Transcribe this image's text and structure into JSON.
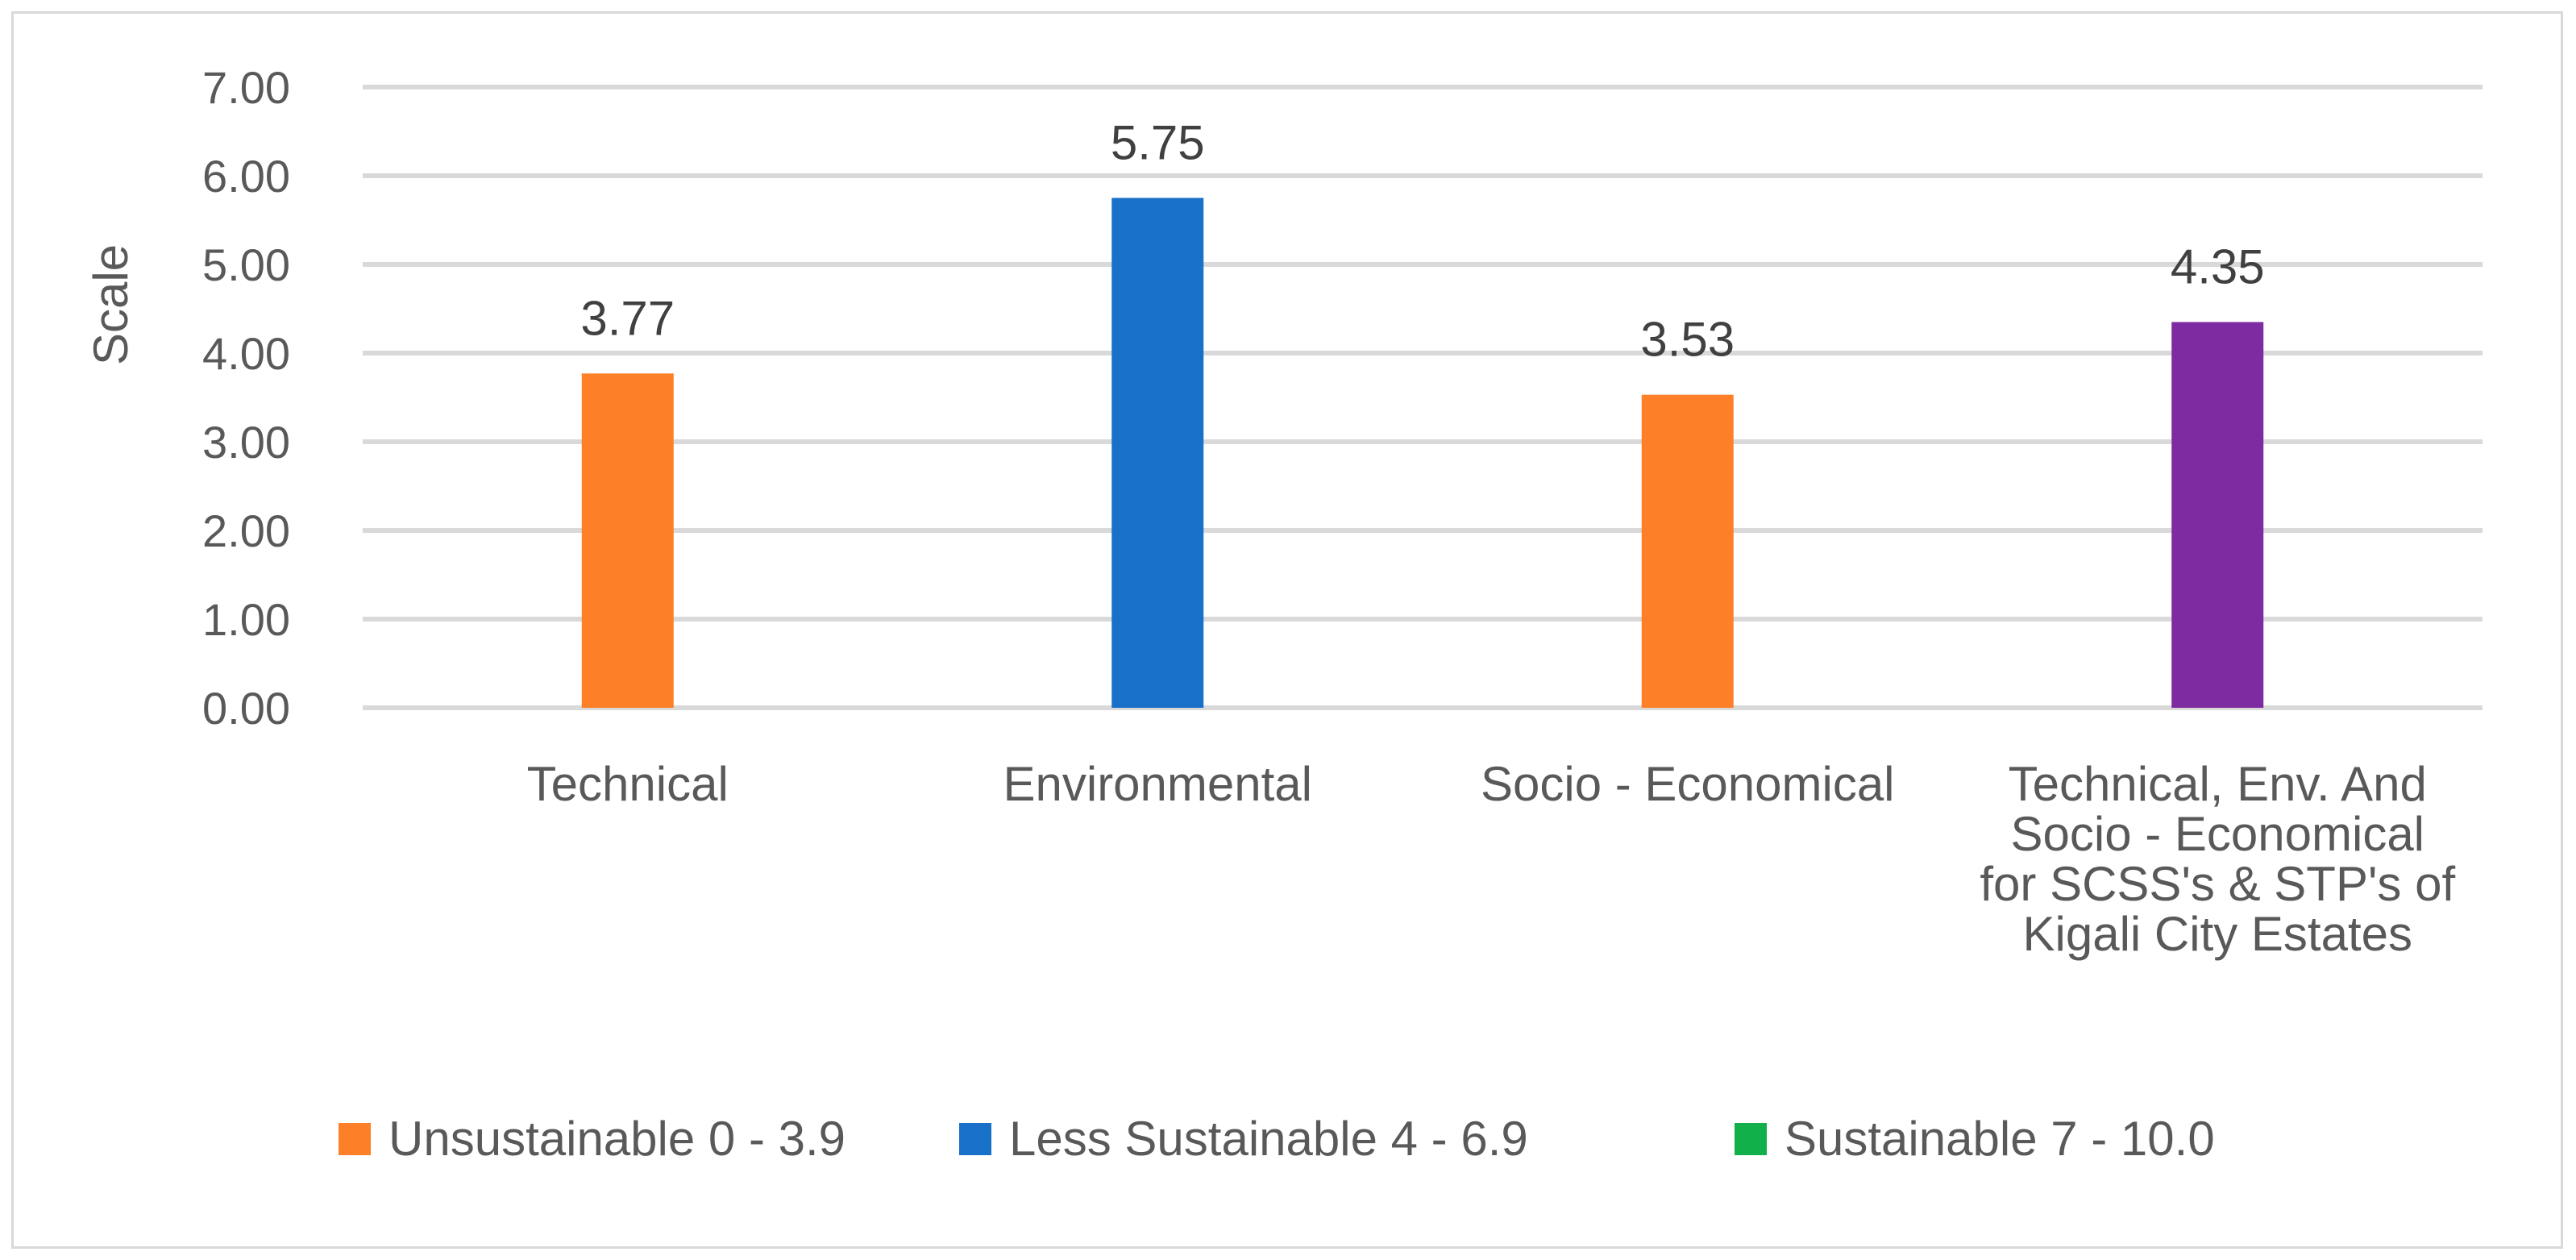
{
  "chart_data": {
    "type": "bar",
    "title": "",
    "xlabel": "",
    "ylabel": "Scale",
    "ylim": [
      0,
      7
    ],
    "y_ticks": [
      "0.00",
      "1.00",
      "2.00",
      "3.00",
      "4.00",
      "5.00",
      "6.00",
      "7.00"
    ],
    "grid": true,
    "legend_position": "bottom",
    "categories": [
      [
        "Technical"
      ],
      [
        "Environmental"
      ],
      [
        "Socio - Economical"
      ],
      [
        "Technical, Env. And",
        "Socio - Economical",
        "for SCSS's & STP's of",
        "Kigali City Estates"
      ]
    ],
    "values": [
      3.77,
      5.75,
      3.53,
      4.35
    ],
    "data_labels": [
      "3.77",
      "5.75",
      "3.53",
      "4.35"
    ],
    "bar_colors": [
      "#fd7f28",
      "#1870c8",
      "#fd7f28",
      "#7e2aa0"
    ],
    "legend": [
      {
        "label": "Unsustainable 0 - 3.9",
        "color": "#fd7f28"
      },
      {
        "label": "Less Sustainable 4 - 6.9",
        "color": "#1870c8"
      },
      {
        "label": "Sustainable 7 - 10.0",
        "color": "#12b04a"
      }
    ]
  }
}
